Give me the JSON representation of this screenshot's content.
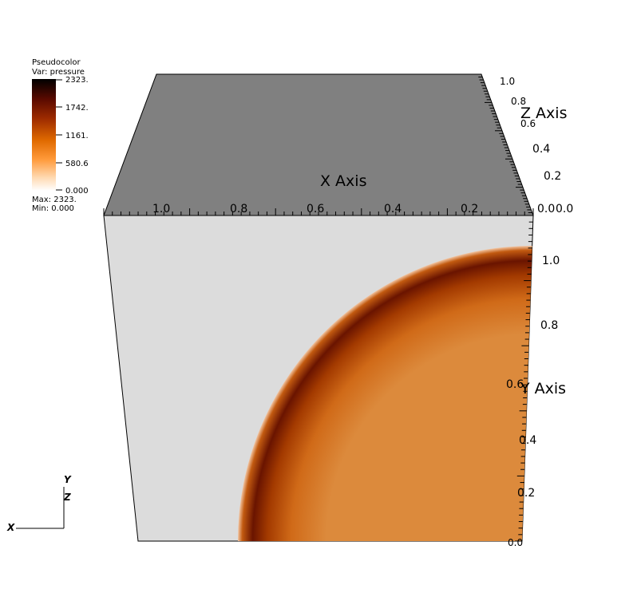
{
  "legend": {
    "plot_type": "Pseudocolor",
    "variable": "Var: pressure",
    "ticks": [
      "2323.",
      "1742.",
      "1161.",
      "580.6",
      "0.000"
    ],
    "max_label": "Max:  2323.",
    "min_label": "Min:  0.000",
    "colors": [
      "#000000",
      "#5a0a00",
      "#9c2a00",
      "#e06a00",
      "#ff9a3a",
      "#ffd9b0",
      "#ffffff"
    ]
  },
  "axes": {
    "x_title": "X Axis",
    "y_title": "Y Axis",
    "z_title": "Z Axis",
    "x_ticks": [
      "1.0",
      "0.8",
      "0.6",
      "0.4",
      "0.2",
      "0.0"
    ],
    "y_ticks": [
      "1.0",
      "0.8",
      "0.6",
      "0.4",
      "0.2",
      "0.0"
    ],
    "z_ticks": [
      "1.0",
      "0.8",
      "0.6",
      "0.4",
      "0.2",
      "0.0"
    ]
  },
  "triad": {
    "x": "X",
    "y": "Y",
    "z": "Z"
  },
  "colors": {
    "top_face": "#808080",
    "front_face": "#dcdcdc",
    "field_fill": "#dc8a3c",
    "shock_dark": "#6a1400",
    "shock_mid": "#b34500",
    "background": "#ffffff"
  }
}
